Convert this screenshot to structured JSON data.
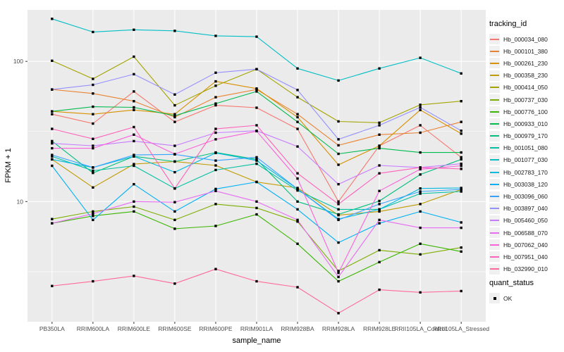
{
  "y_axis_title": "FPKM + 1",
  "x_axis_title": "sample_name",
  "legend_title": "tracking_id",
  "legend2_title": "quant_status",
  "legend2_items": [
    "OK"
  ],
  "chart_data": {
    "type": "line",
    "title": "",
    "xlabel": "sample_name",
    "ylabel": "FPKM + 1",
    "y_scale": "log10",
    "ylim": [
      1.39,
      233
    ],
    "y_major_ticks": [
      10,
      100
    ],
    "y_major_tick_labels": [
      "10",
      "100"
    ],
    "y_minor_ticks": [
      3.162,
      31.62
    ],
    "grid": "on",
    "legend_position": "right",
    "panel_background": "#EBEBEB",
    "grid_color": "#FFFFFF",
    "point_color": "#000000",
    "point_shape": "square",
    "categories": [
      "PB350LA",
      "RRIM600LA",
      "RRIM600LE",
      "RRIM600SE",
      "RRIM600PE",
      "RRIM901LA",
      "RRIM928BA",
      "RRIM928LA",
      "RRIM928LE",
      "RRII105LA_Control",
      "RRII105LA_Stressed"
    ],
    "series": [
      {
        "name": "Hb_000034_080",
        "color": "#F8766D",
        "values": [
          42,
          36,
          61,
          37,
          48.6,
          46.7,
          33,
          10,
          25,
          35,
          20.7
        ]
      },
      {
        "name": "Hb_000101_380",
        "color": "#EA8331",
        "values": [
          63,
          59,
          52,
          40,
          55.5,
          63,
          42,
          25.2,
          30,
          31,
          37
        ]
      },
      {
        "name": "Hb_000261_230",
        "color": "#D89000",
        "values": [
          44,
          42,
          45,
          42,
          72,
          64,
          40,
          18.3,
          25,
          45,
          30.5
        ]
      },
      {
        "name": "Hb_000358_230",
        "color": "#C09B00",
        "values": [
          20,
          12.6,
          18.5,
          19.3,
          18.1,
          13.8,
          12.5,
          8.0,
          8.5,
          9.6,
          12.2
        ]
      },
      {
        "name": "Hb_000414_050",
        "color": "#A3A500",
        "values": [
          101,
          75,
          108,
          48.6,
          67,
          88,
          55.5,
          37.3,
          36.5,
          49,
          52
        ]
      },
      {
        "name": "Hb_000737_030",
        "color": "#7CAE00",
        "values": [
          7.5,
          8.5,
          9.2,
          7.4,
          9.6,
          9.0,
          7.2,
          3.2,
          4.5,
          4.2,
          4.7
        ]
      },
      {
        "name": "Hb_000776_100",
        "color": "#39B600",
        "values": [
          7.0,
          7.9,
          8.5,
          6.4,
          6.7,
          8.1,
          5.0,
          2.7,
          3.7,
          5.0,
          4.4
        ]
      },
      {
        "name": "Hb_000933_010",
        "color": "#00BB4E",
        "values": [
          44,
          47.5,
          47,
          41,
          50,
          61,
          37,
          21.9,
          24,
          22.4,
          22.4
        ]
      },
      {
        "name": "Hb_000979_170",
        "color": "#00BF7D",
        "values": [
          27,
          16,
          21,
          19.3,
          22.4,
          20,
          10,
          8.1,
          10.1,
          15.6,
          20
        ]
      },
      {
        "name": "Hb_001051_080",
        "color": "#00C1A3",
        "values": [
          21,
          16.6,
          18,
          12.4,
          16.8,
          18.6,
          12,
          8.8,
          8.8,
          11.4,
          11.8
        ]
      },
      {
        "name": "Hb_001077_030",
        "color": "#00BFC4",
        "values": [
          201,
          162,
          168,
          165,
          152,
          150,
          89,
          73,
          89,
          106,
          82
        ]
      },
      {
        "name": "Hb_002783_170",
        "color": "#00BAE0",
        "values": [
          20,
          17.5,
          21,
          16.2,
          22.2,
          19.6,
          12.3,
          7.5,
          8.8,
          12.4,
          12.5
        ]
      },
      {
        "name": "Hb_003038_120",
        "color": "#00B0F6",
        "values": [
          18,
          7.4,
          13.3,
          8.5,
          12.3,
          13.8,
          8.8,
          5.1,
          7.0,
          8.5,
          7.1
        ]
      },
      {
        "name": "Hb_003096_060",
        "color": "#35A2FF",
        "values": [
          21.5,
          17.5,
          21.5,
          21.7,
          19.6,
          20.7,
          12.3,
          7.4,
          9.6,
          11.8,
          12.2
        ]
      },
      {
        "name": "Hb_003897_040",
        "color": "#9590FF",
        "values": [
          63,
          68,
          81,
          58,
          83,
          88,
          62.5,
          27.8,
          35,
          47,
          32
        ]
      },
      {
        "name": "Hb_005460_050",
        "color": "#C77CFF",
        "values": [
          26,
          25,
          27,
          25,
          31,
          32,
          24.7,
          13.3,
          18.1,
          17.5,
          18.6
        ]
      },
      {
        "name": "Hb_006588_070",
        "color": "#E76BF3",
        "values": [
          7.0,
          8.2,
          10,
          9.9,
          11.9,
          10,
          7.4,
          2.9,
          7.4,
          6.5,
          6.5
        ]
      },
      {
        "name": "Hb_007062_040",
        "color": "#FA62DB",
        "values": [
          24,
          24,
          30,
          21.8,
          27.8,
          31.8,
          14.6,
          3.1,
          11.9,
          17,
          18
        ]
      },
      {
        "name": "Hb_007951_040",
        "color": "#FF62BC",
        "values": [
          33,
          28,
          34,
          12.4,
          33,
          35,
          15.9,
          9.6,
          15.9,
          17.5,
          17.1
        ]
      },
      {
        "name": "Hb_032990_010",
        "color": "#FF6A98",
        "values": [
          2.5,
          2.7,
          2.95,
          2.6,
          3.3,
          2.7,
          2.45,
          1.6,
          2.35,
          2.25,
          2.3
        ]
      }
    ]
  }
}
